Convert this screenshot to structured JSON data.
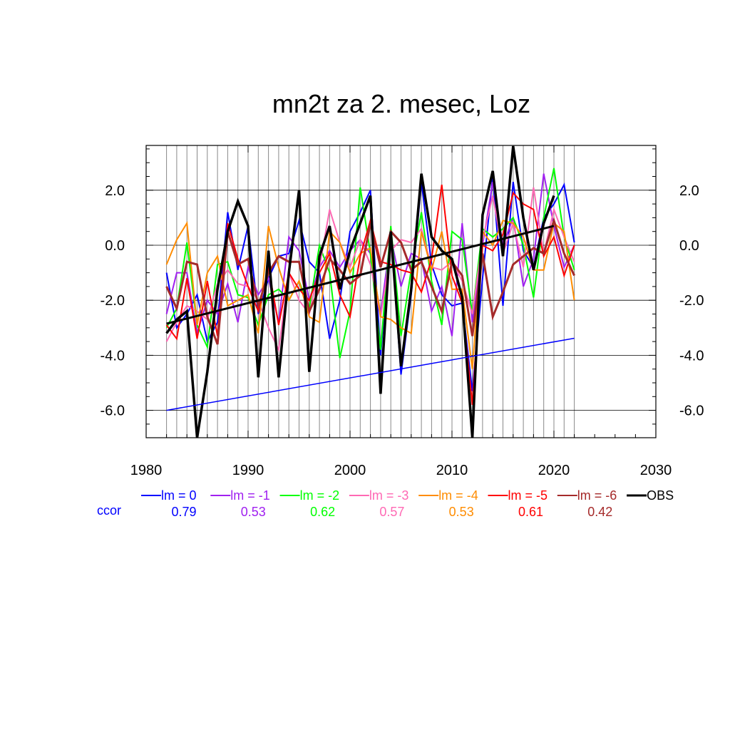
{
  "chart_data": {
    "type": "line",
    "title": "mn2t za 2. mesec, Loz",
    "xlabel": "",
    "ylabel": "",
    "xlim": [
      1980,
      2030
    ],
    "ylim": [
      -7.1,
      3.6
    ],
    "x_ticks": [
      "1980",
      "1990",
      "2000",
      "2010",
      "2020",
      "2030"
    ],
    "y_ticks": [
      "2.0",
      "0.0",
      "-2.0",
      "-4.0",
      "-6.0"
    ],
    "y_tick_values": [
      2,
      0,
      -2,
      -4,
      -6
    ],
    "grid": true,
    "legend_position": "bottom",
    "x": [
      1982,
      1983,
      1984,
      1985,
      1986,
      1987,
      1988,
      1989,
      1990,
      1991,
      1992,
      1993,
      1994,
      1995,
      1996,
      1997,
      1998,
      1999,
      2000,
      2001,
      2002,
      2003,
      2004,
      2005,
      2006,
      2007,
      2008,
      2009,
      2010,
      2011,
      2012,
      2013,
      2014,
      2015,
      2016,
      2017,
      2018,
      2019,
      2020,
      2021,
      2022
    ],
    "series": [
      {
        "name": "lm = 0",
        "color": "#0000ff",
        "width": 2,
        "values": [
          -1.0,
          -3.0,
          -2.5,
          -1.8,
          -3.5,
          -2.8,
          1.2,
          -0.9,
          0.7,
          -2.5,
          -1.2,
          -0.4,
          -0.3,
          0.9,
          -0.6,
          -1.0,
          -3.4,
          -2.0,
          0.5,
          1.2,
          2.0,
          -4.0,
          0.5,
          -4.7,
          -1.8,
          2.3,
          -0.7,
          -1.8,
          -2.2,
          -2.1,
          -5.3,
          -1.2,
          2.5,
          -2.2,
          2.3,
          -0.2,
          -0.8,
          1.0,
          1.5,
          2.2,
          0.1
        ]
      },
      {
        "name": "lm = -1",
        "color": "#a020f0",
        "width": 2,
        "values": [
          -2.5,
          -1.0,
          -1.0,
          -3.2,
          -2.0,
          -2.5,
          -1.4,
          -2.8,
          -0.8,
          -1.8,
          -1.2,
          -2.8,
          0.3,
          -0.2,
          -2.0,
          -0.8,
          -0.2,
          -0.8,
          -0.2,
          0.2,
          -0.3,
          -2.5,
          0.3,
          -1.5,
          -0.3,
          -0.5,
          -2.4,
          -1.5,
          -3.3,
          0.8,
          -2.8,
          0.0,
          2.3,
          0.0,
          1.0,
          -1.5,
          -0.5,
          2.6,
          0.7,
          -0.8,
          0.0
        ]
      },
      {
        "name": "lm = -2",
        "color": "#00ff00",
        "width": 2,
        "values": [
          -3.0,
          -2.3,
          0.1,
          -2.9,
          -3.7,
          -0.7,
          -0.6,
          -1.8,
          -1.9,
          -2.9,
          -1.8,
          -1.6,
          -2.0,
          -1.3,
          -2.3,
          0.0,
          -1.0,
          -4.1,
          -2.4,
          2.1,
          -0.3,
          -3.8,
          0.7,
          -3.3,
          -0.9,
          1.2,
          -1.3,
          -2.9,
          0.5,
          0.2,
          -2.5,
          0.6,
          0.3,
          0.6,
          1.0,
          0.0,
          -1.9,
          1.0,
          2.8,
          0.3,
          -0.9
        ]
      },
      {
        "name": "lm = -3",
        "color": "#ff69b4",
        "width": 2,
        "values": [
          -3.5,
          -2.8,
          -2.2,
          -2.4,
          -2.7,
          -1.4,
          -0.9,
          -1.4,
          -1.5,
          -2.0,
          -3.0,
          -3.8,
          -1.0,
          -2.0,
          -2.5,
          -0.8,
          1.3,
          0.1,
          -0.8,
          0.2,
          -0.7,
          -2.6,
          -0.2,
          0.2,
          0.1,
          0.6,
          -0.8,
          -0.9,
          -0.6,
          -1.3,
          -2.5,
          0.2,
          1.8,
          -0.3,
          0.8,
          -0.8,
          2.1,
          -0.3,
          1.3,
          0.3,
          -0.6
        ]
      },
      {
        "name": "lm = -4",
        "color": "#ff8c00",
        "width": 2,
        "values": [
          -0.7,
          0.2,
          0.8,
          -2.9,
          -1.0,
          -0.4,
          -2.2,
          -2.0,
          -1.8,
          -3.2,
          0.7,
          -0.8,
          -2.0,
          -1.3,
          -2.6,
          -2.8,
          0.5,
          0.1,
          -1.0,
          -0.3,
          -0.1,
          -2.6,
          -2.7,
          -3.0,
          -3.2,
          0.5,
          -0.9,
          0.5,
          -1.6,
          -1.6,
          -4.5,
          0.5,
          0.0,
          0.9,
          0.8,
          0.3,
          -0.9,
          -0.9,
          0.8,
          0.5,
          -2.0
        ]
      },
      {
        "name": "lm = -5",
        "color": "#ff0000",
        "width": 2,
        "values": [
          -2.9,
          -3.4,
          -1.2,
          -3.4,
          -1.3,
          -3.3,
          0.8,
          -0.5,
          -1.5,
          -2.4,
          -0.8,
          -2.9,
          -1.0,
          -1.6,
          -2.0,
          -1.0,
          -0.3,
          -1.8,
          -2.6,
          -0.4,
          0.9,
          -0.6,
          -0.7,
          -0.9,
          -1.0,
          -1.7,
          -0.5,
          2.2,
          -1.1,
          -2.1,
          -5.8,
          0.0,
          -0.2,
          0.4,
          1.9,
          1.5,
          1.3,
          -0.4,
          0.3,
          -1.1,
          0.0
        ]
      },
      {
        "name": "lm = -6",
        "color": "#a52a2a",
        "width": 3,
        "values": [
          -1.5,
          -2.3,
          -0.6,
          -0.7,
          -2.6,
          -3.6,
          0.5,
          -0.7,
          -0.5,
          -2.2,
          -1.0,
          -0.4,
          -0.6,
          -0.6,
          -2.4,
          -1.6,
          -0.5,
          -0.9,
          -1.4,
          -1.1,
          0.8,
          -0.8,
          0.5,
          0.1,
          -0.9,
          -0.6,
          -1.5,
          -2.4,
          -0.6,
          -1.1,
          -3.3,
          -0.3,
          -2.6,
          -1.7,
          -0.7,
          -0.4,
          -0.1,
          -0.3,
          0.9,
          -0.3,
          -1.1
        ]
      },
      {
        "name": "OBS",
        "color": "#000000",
        "width": 3.5,
        "values": [
          -3.2,
          -2.7,
          -2.4,
          -7.0,
          -4.6,
          -1.6,
          0.5,
          1.6,
          0.7,
          -4.8,
          -0.2,
          -4.8,
          -1.0,
          2.0,
          -4.6,
          -0.4,
          0.7,
          -1.6,
          -0.2,
          0.8,
          1.8,
          -5.4,
          0.5,
          -4.4,
          -1.6,
          2.6,
          0.3,
          -0.2,
          -0.5,
          -1.9,
          -7.0,
          1.1,
          2.7,
          -0.4,
          3.6,
          1.0,
          -0.9,
          0.8,
          1.8,
          null,
          null
        ]
      }
    ],
    "trend_lines": [
      {
        "name": "OBS trend",
        "color": "#000000",
        "width": 3,
        "x": [
          1982,
          2020
        ],
        "y": [
          -2.85,
          0.7
        ]
      },
      {
        "name": "lm = 0 trend",
        "color": "#0000ff",
        "width": 1.5,
        "x": [
          1982,
          2022
        ],
        "y": [
          -6.0,
          -3.38
        ]
      }
    ],
    "legend": [
      {
        "label": "lm = 0",
        "color": "#0000ff"
      },
      {
        "label": "lm = -1",
        "color": "#a020f0"
      },
      {
        "label": "lm = -2",
        "color": "#00ff00"
      },
      {
        "label": "lm = -3",
        "color": "#ff69b4"
      },
      {
        "label": "lm = -4",
        "color": "#ff8c00"
      },
      {
        "label": "lm = -5",
        "color": "#ff0000"
      },
      {
        "label": "lm = -6",
        "color": "#a52a2a"
      },
      {
        "label": "OBS",
        "color": "#000000"
      }
    ],
    "ccor_label": "ccor",
    "ccor_label_color": "#0000ff",
    "ccor": [
      {
        "value": "0.79",
        "color": "#0000ff"
      },
      {
        "value": "0.53",
        "color": "#a020f0"
      },
      {
        "value": "0.62",
        "color": "#00ff00"
      },
      {
        "value": "0.57",
        "color": "#ff69b4"
      },
      {
        "value": "0.53",
        "color": "#ff8c00"
      },
      {
        "value": "0.61",
        "color": "#ff0000"
      },
      {
        "value": "0.42",
        "color": "#a52a2a"
      }
    ]
  }
}
